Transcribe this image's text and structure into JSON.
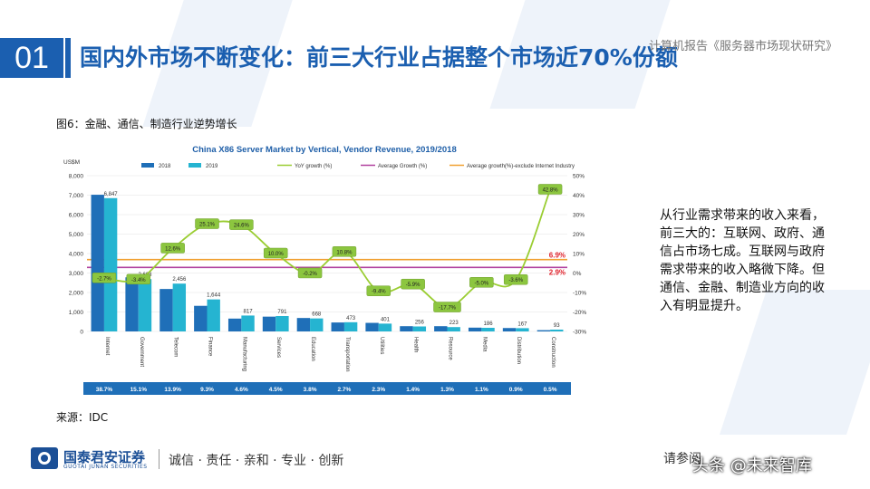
{
  "slide": {
    "number": "01",
    "title": "国内外市场不断变化：前三大行业占据整个市场近70%份额",
    "report_name": "计算机报告《服务器市场现状研究》",
    "figure_caption": "图6：金融、通信、制造行业逆势增长",
    "source": "来源：IDC",
    "side_text": "从行业需求带来的收入来看，前三大的：互联网、政府、通信占市场七成。互联网与政府需求带来的收入略微下降。但通信、金融、制造业方向的收入有明显提升。",
    "footer_company": "国泰君安证券",
    "footer_company_en": "GUOTAI JUNAN SECURITIES",
    "footer_slogan": "诚信 · 责任 · 亲和 · 专业 · 创新",
    "footer_disclaimer": "请参阅",
    "watermark": "头条 @未来智库"
  },
  "colors": {
    "brand": "#1b5fb0",
    "bar_2018": "#1f6fb8",
    "bar_2019": "#25b4d1",
    "yoy_line": "#9acd32",
    "avg_growth": "#b0409e",
    "avg_excl": "#f0a030",
    "share_bar": "#1f6fb8"
  },
  "chart_data": {
    "type": "bar",
    "title": "China X86 Server Market by Vertical, Vendor Revenue, 2019/2018",
    "ylabel": "US$M",
    "ylim": [
      0,
      8000
    ],
    "yticks": [
      "0",
      "1,000",
      "2,000",
      "3,000",
      "4,000",
      "5,000",
      "6,000",
      "7,000",
      "8,000"
    ],
    "y2lim": [
      -30,
      50
    ],
    "y2ticks": [
      "-30%",
      "-20%",
      "-10%",
      "0%",
      "10%",
      "20%",
      "30%",
      "40%",
      "50%"
    ],
    "categories": [
      "Internet",
      "Government",
      "Telecom",
      "Finance",
      "Manufacturing",
      "Services",
      "Education",
      "Transportation",
      "Utilities",
      "Health",
      "Resource",
      "Media",
      "Distribution",
      "Construction"
    ],
    "series": [
      {
        "name": "2018",
        "values": [
          7020,
          2780,
          2180,
          1315,
          660,
          760,
          690,
          460,
          440,
          270,
          270,
          195,
          175,
          65
        ]
      },
      {
        "name": "2019",
        "values": [
          6847,
          2688,
          2456,
          1644,
          817,
          791,
          668,
          473,
          401,
          256,
          223,
          186,
          167,
          93
        ]
      }
    ],
    "value_labels": [
      "6,847",
      "2,688",
      "2,456",
      "1,644",
      "817",
      "791",
      "668",
      "473",
      "401",
      "256",
      "223",
      "186",
      "167",
      "93"
    ],
    "yoy": {
      "name": "YoY growth (%)",
      "values": [
        -2.7,
        -3.4,
        12.6,
        25.1,
        24.6,
        10.0,
        -0.2,
        10.8,
        -9.4,
        -5.9,
        -17.7,
        -5.0,
        -3.6,
        42.8
      ],
      "labels": [
        "-2.7%",
        "-3.4%",
        "12.6%",
        "25.1%",
        "24.6%",
        "10.0%",
        "-0.2%",
        "10.8%",
        "-9.4%",
        "-5.9%",
        "-17.7%",
        "-5.0%",
        "-3.6%",
        "42.8%"
      ]
    },
    "avg_growth": {
      "name": "Average Growth (%)",
      "value": 2.9,
      "label": "2.9%"
    },
    "avg_growth_excl": {
      "name": "Average growth(%)-exclude Internet Industry",
      "value": 6.9,
      "label": "6.9%"
    },
    "shares": [
      "38.7%",
      "15.1%",
      "13.9%",
      "9.3%",
      "4.6%",
      "4.5%",
      "3.8%",
      "2.7%",
      "2.3%",
      "1.4%",
      "1.3%",
      "1.1%",
      "0.9%",
      "0.5%"
    ],
    "legend": [
      "2018",
      "2019",
      "YoY growth (%)",
      "Average Growth (%)",
      "Average growth(%)-exclude Internet Industry"
    ],
    "legend_position": "top"
  }
}
